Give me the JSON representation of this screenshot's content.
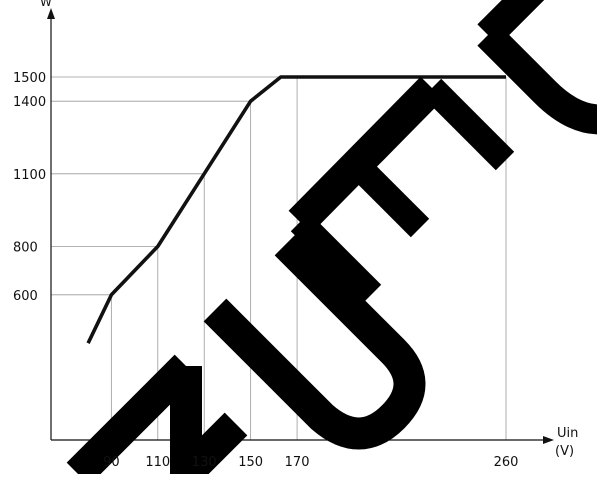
{
  "chart_data": {
    "type": "line",
    "title": "",
    "xlabel": "Uin",
    "xunit": "(V)",
    "ylabel": "W",
    "x_ticks": [
      90,
      110,
      130,
      150,
      170,
      260
    ],
    "y_ticks": [
      600,
      800,
      1100,
      1400,
      1500
    ],
    "xlim": [
      64,
      270
    ],
    "ylim": [
      0,
      1620
    ],
    "grid": true,
    "series": [
      {
        "points": [
          {
            "x": 80,
            "y": 400
          },
          {
            "x": 90,
            "y": 600
          },
          {
            "x": 110,
            "y": 800
          },
          {
            "x": 130,
            "y": 1100
          },
          {
            "x": 150,
            "y": 1400
          },
          {
            "x": 163,
            "y": 1500
          },
          {
            "x": 170,
            "y": 1500
          },
          {
            "x": 260,
            "y": 1500
          }
        ],
        "color": "#111111"
      }
    ],
    "guides": [
      {
        "x": 90,
        "y": 600
      },
      {
        "x": 110,
        "y": 800
      },
      {
        "x": 130,
        "y": 1100
      },
      {
        "x": 150,
        "y": 1400
      },
      {
        "x": 170,
        "y": 1500
      },
      {
        "x": 260,
        "y": 1500
      }
    ]
  },
  "watermark": {
    "text": "NUED",
    "color": "#000000"
  }
}
